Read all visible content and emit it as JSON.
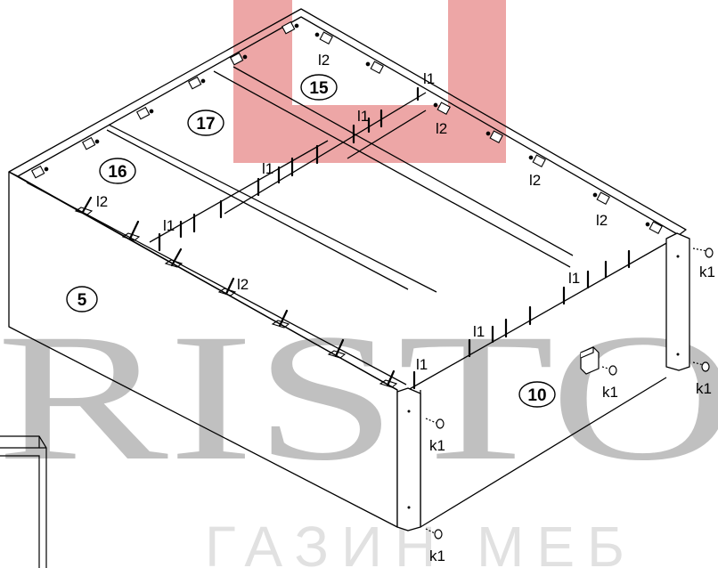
{
  "watermark": {
    "main_text": "RISTO",
    "sub_text": "ГАЗИН МЕБ",
    "logo_color": "#e06666"
  },
  "parts": {
    "p5": "5",
    "p10": "10",
    "p15": "15",
    "p16": "16",
    "p17": "17"
  },
  "hardware": {
    "l1": "l1",
    "l2": "l2",
    "k1": "k1"
  }
}
